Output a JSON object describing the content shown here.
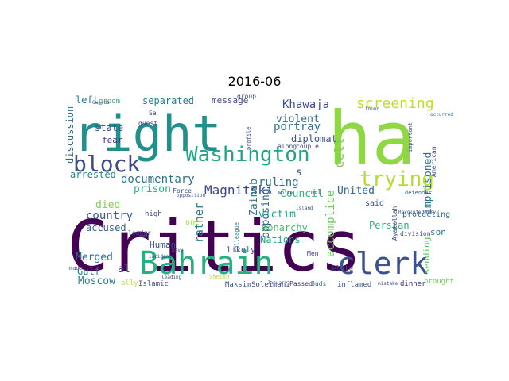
{
  "title": "2016-06",
  "words": [
    {
      "text": "Critics",
      "color": "#440154"
    },
    {
      "text": "ha",
      "color": "#8fd744"
    },
    {
      "text": "right",
      "color": "#21908d"
    },
    {
      "text": "Bahrain",
      "color": "#29af7f"
    },
    {
      "text": "clerk",
      "color": "#3b528b"
    },
    {
      "text": "Washington",
      "color": "#21a685"
    },
    {
      "text": "block",
      "color": "#3e4a89"
    },
    {
      "text": "trying",
      "color": "#b5de2b"
    },
    {
      "text": "screening",
      "color": "#bddf26"
    },
    {
      "text": "Khawaja",
      "color": "#3e4c8a"
    },
    {
      "text": "Magnitski",
      "color": "#3f4788"
    },
    {
      "text": "documentary",
      "color": "#2c728e"
    },
    {
      "text": "accomplice",
      "color": "#6ccd5a"
    },
    {
      "text": "imprisoned",
      "color": "#2c738e"
    },
    {
      "text": "cell",
      "color": "#7ad151"
    },
    {
      "text": "portray",
      "color": "#2c728e"
    },
    {
      "text": "violent",
      "color": "#31668e"
    },
    {
      "text": "separated",
      "color": "#287c8e"
    },
    {
      "text": "message",
      "color": "#3f4788"
    },
    {
      "text": "diplomat",
      "color": "#3b528b"
    },
    {
      "text": "ruling",
      "color": "#2d718e"
    },
    {
      "text": "Zainab",
      "color": "#2a778e"
    },
    {
      "text": "opposing",
      "color": "#31688e"
    },
    {
      "text": "rather",
      "color": "#297b8e"
    },
    {
      "text": "victim",
      "color": "#1fa088"
    },
    {
      "text": "monarchy",
      "color": "#46c06f"
    },
    {
      "text": "Nations",
      "color": "#22a884"
    },
    {
      "text": "Council",
      "color": "#35b779"
    },
    {
      "text": "United",
      "color": "#31688e"
    },
    {
      "text": "Persian",
      "color": "#2ab07f"
    },
    {
      "text": "country",
      "color": "#3b528b"
    },
    {
      "text": "died",
      "color": "#7ad151"
    },
    {
      "text": "prison",
      "color": "#27ad81"
    },
    {
      "text": "arrested",
      "color": "#25858e"
    },
    {
      "text": "discussion",
      "color": "#2f6c8e"
    },
    {
      "text": "state",
      "color": "#3e4989"
    },
    {
      "text": "fear",
      "color": "#46337f"
    },
    {
      "text": "left",
      "color": "#2a788e"
    },
    {
      "text": "groom",
      "color": "#32b67a"
    },
    {
      "text": "accused",
      "color": "#31668e"
    },
    {
      "text": "Merged",
      "color": "#2c718e"
    },
    {
      "text": "Gulf",
      "color": "#26828e"
    },
    {
      "text": "al",
      "color": "#433e85"
    },
    {
      "text": "Moscow",
      "color": "#25848e"
    },
    {
      "text": "Human",
      "color": "#3d4d8a"
    },
    {
      "text": "sending",
      "color": "#4fc46a"
    },
    {
      "text": "son",
      "color": "#2c738e"
    },
    {
      "text": "said",
      "color": "#3e4c8a"
    },
    {
      "text": "protecting",
      "color": "#2e6f8e"
    },
    {
      "text": "brought",
      "color": "#7ad151"
    },
    {
      "text": "dinner",
      "color": "#482475"
    },
    {
      "text": "inflamed",
      "color": "#3b528b"
    },
    {
      "text": "Passed",
      "color": "#453781"
    },
    {
      "text": "Buds",
      "color": "#2f6c8e"
    },
    {
      "text": "Soleimani",
      "color": "#404588"
    },
    {
      "text": "Maksim",
      "color": "#3a548c"
    },
    {
      "text": "Islamic",
      "color": "#3d4e8a"
    },
    {
      "text": "elite",
      "color": "#3b528b"
    },
    {
      "text": "Men",
      "color": "#433e85"
    },
    {
      "text": "likely",
      "color": "#3e4a89"
    },
    {
      "text": "one",
      "color": "#b5de2b"
    },
    {
      "text": "Force",
      "color": "#3e4989"
    },
    {
      "text": "high",
      "color": "#3e4c8a"
    },
    {
      "text": "leader",
      "color": "#3f4788"
    },
    {
      "text": "colleague",
      "color": "#2c718e"
    },
    {
      "text": "Ayatollah",
      "color": "#3f4788"
    },
    {
      "text": "division",
      "color": "#404588"
    },
    {
      "text": "American",
      "color": "#3e4c8a"
    },
    {
      "text": "important",
      "color": "#3b528b"
    },
    {
      "text": "couple",
      "color": "#414487"
    },
    {
      "text": "along",
      "color": "#3f4788"
    },
    {
      "text": "profile",
      "color": "#3d4e8a"
    },
    {
      "text": "met",
      "color": "#3e4989"
    },
    {
      "text": "defender",
      "color": "#2e6e8e"
    },
    {
      "text": "Revolutionary",
      "color": "#3e4c8a"
    },
    {
      "text": "occurred",
      "color": "#31688e"
    },
    {
      "text": "mistake",
      "color": "#3e4c8a"
    },
    {
      "text": "found",
      "color": "#3b528b"
    },
    {
      "text": "group",
      "color": "#3b528b"
    },
    {
      "text": "guest",
      "color": "#3f4788"
    },
    {
      "text": "Guards",
      "color": "#3e4989"
    },
    {
      "text": "Navy",
      "color": "#3d4e8a"
    },
    {
      "text": "incident",
      "color": "#3f4788"
    },
    {
      "text": "leading",
      "color": "#3e4c8a"
    },
    {
      "text": "made",
      "color": "#3b528b"
    },
    {
      "text": "ally",
      "color": "#b5de2b"
    },
    {
      "text": "Sheikh",
      "color": "#b5de2b"
    },
    {
      "text": "January",
      "color": "#3b528b"
    },
    {
      "text": "Island",
      "color": "#3b528b"
    },
    {
      "text": "White",
      "color": "#3f4788"
    },
    {
      "text": "opposition",
      "color": "#3b528b"
    },
    {
      "text": "Sa",
      "color": "#3e4c8a"
    },
    {
      "text": "s",
      "color": "#3b528b"
    },
    {
      "text": "L",
      "color": "#3b528b"
    }
  ]
}
